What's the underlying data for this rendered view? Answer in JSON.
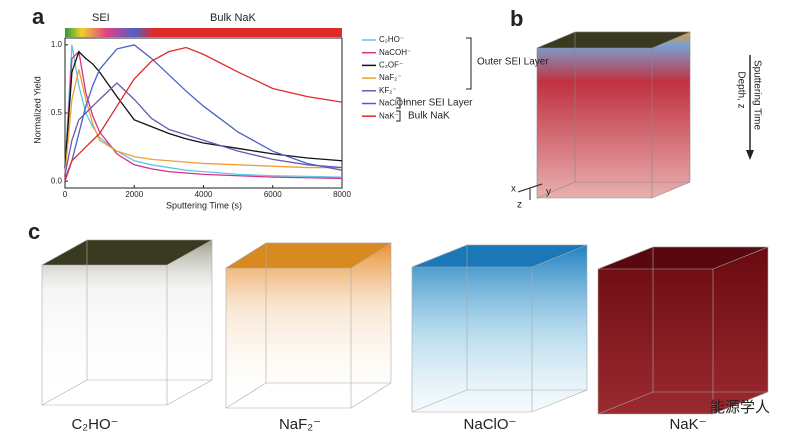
{
  "chart_data": {
    "type": "line",
    "y_label": "Normalized Yield",
    "x_label": "Sputtering Time (s)",
    "top_bar_labels": [
      "SEI",
      "Bulk NaK"
    ],
    "legend_groups": [
      "Outer SEI Layer",
      "Inner SEI Layer",
      "Bulk NaK"
    ],
    "x": [
      0,
      200,
      400,
      600,
      800,
      1000,
      1500,
      2000,
      2500,
      3000,
      3500,
      4000,
      5000,
      6000,
      7000,
      8000
    ],
    "xlim": [
      0,
      8000
    ],
    "xticks": [
      0,
      2000,
      4000,
      6000,
      8000
    ],
    "ylim": [
      -0.05,
      1.05
    ],
    "yticks": [
      {
        "value": 0,
        "label": "0.0"
      },
      {
        "value": 0.5,
        "label": "0.5"
      },
      {
        "value": 1,
        "label": "1.0"
      }
    ],
    "series": [
      {
        "name": "C₂HO⁻",
        "color": "#5ec8e0",
        "values": [
          0.1,
          1.0,
          0.7,
          0.5,
          0.4,
          0.32,
          0.22,
          0.15,
          0.12,
          0.1,
          0.08,
          0.07,
          0.05,
          0.04,
          0.035,
          0.03
        ]
      },
      {
        "name": "NaCOH⁻",
        "color": "#d8308a",
        "values": [
          0.05,
          0.9,
          0.95,
          0.65,
          0.48,
          0.36,
          0.2,
          0.12,
          0.09,
          0.07,
          0.06,
          0.05,
          0.04,
          0.03,
          0.025,
          0.02
        ]
      },
      {
        "name": "C₂OF⁻",
        "color": "#111111",
        "values": [
          0.1,
          0.8,
          0.95,
          0.9,
          0.86,
          0.8,
          0.62,
          0.45,
          0.4,
          0.35,
          0.31,
          0.28,
          0.24,
          0.2,
          0.17,
          0.15
        ]
      },
      {
        "name": "NaF₂⁻",
        "color": "#f0a030",
        "values": [
          0.05,
          0.6,
          0.82,
          0.6,
          0.42,
          0.3,
          0.22,
          0.18,
          0.16,
          0.15,
          0.14,
          0.13,
          0.12,
          0.11,
          0.1,
          0.1
        ]
      },
      {
        "name": "KF₂⁻",
        "color": "#6a58b8",
        "values": [
          0.05,
          0.3,
          0.45,
          0.5,
          0.55,
          0.6,
          0.72,
          0.6,
          0.46,
          0.38,
          0.34,
          0.3,
          0.22,
          0.16,
          0.12,
          0.1
        ]
      },
      {
        "name": "NaClO⁻",
        "color": "#4a60c8",
        "values": [
          0.02,
          0.15,
          0.35,
          0.55,
          0.7,
          0.82,
          0.97,
          1.0,
          0.9,
          0.78,
          0.66,
          0.55,
          0.36,
          0.22,
          0.13,
          0.08
        ]
      },
      {
        "name": "NaK⁻",
        "color": "#e02a2a",
        "values": [
          0.0,
          0.15,
          0.2,
          0.25,
          0.3,
          0.35,
          0.55,
          0.75,
          0.88,
          0.95,
          0.98,
          0.93,
          0.8,
          0.68,
          0.62,
          0.58
        ]
      }
    ]
  },
  "figure": {
    "panel_labels": [
      "a",
      "b",
      "c"
    ],
    "panel_b": {
      "arrow_label": "Sputtering Time",
      "depth_label": "Depth, z",
      "axes": [
        "x",
        "y",
        "z"
      ]
    },
    "panel_c": {
      "labels": [
        "C₂HO⁻",
        "NaF₂⁻",
        "NaClO⁻",
        "NaK⁻"
      ]
    },
    "watermark": "能源学人"
  }
}
